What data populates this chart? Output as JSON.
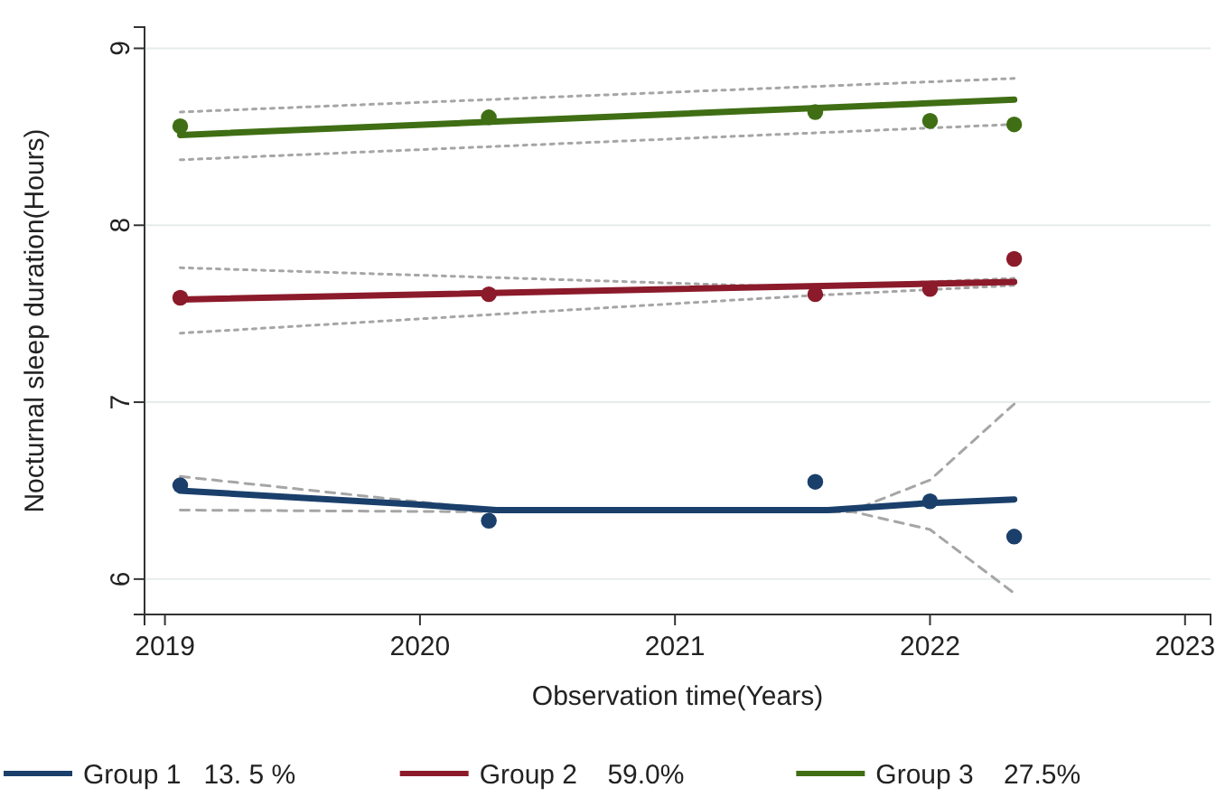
{
  "chart_data": {
    "type": "line",
    "xlabel": "Observation time(Years)",
    "ylabel": "Nocturnal sleep duration(Hours)",
    "xlim": [
      2018.92,
      2023.1
    ],
    "xticks": [
      2019,
      2020,
      2021,
      2022,
      2023
    ],
    "ylim": [
      5.8,
      9.12
    ],
    "yticks": [
      6,
      7,
      8,
      9
    ],
    "grid": "y",
    "legend": "bottom",
    "series": [
      {
        "name": "Group 1   13. 5 %",
        "color": "#1a3f6b",
        "x": [
          2019.06,
          2020.0,
          2020.3,
          2021.6,
          2022.0,
          2022.33
        ],
        "values": [
          6.5,
          6.42,
          6.39,
          6.39,
          6.43,
          6.45
        ]
      },
      {
        "name": "Group 2    59.0%",
        "color": "#8b1a2a",
        "x": [
          2019.06,
          2022.33
        ],
        "values": [
          7.58,
          7.68
        ]
      },
      {
        "name": "Group 3    27.5%",
        "color": "#3f6e14",
        "x": [
          2019.06,
          2022.33
        ],
        "values": [
          8.51,
          8.71
        ]
      },
      {
        "type": "scatter",
        "marker": "circle",
        "color": "#1a3f6b",
        "x": [
          2019.06,
          2020.27,
          2021.55,
          2022.0,
          2022.33
        ],
        "values": [
          6.53,
          6.33,
          6.55,
          6.44,
          6.24
        ]
      },
      {
        "type": "scatter",
        "marker": "circle",
        "color": "#8b1a2a",
        "x": [
          2019.06,
          2020.27,
          2021.55,
          2022.0,
          2022.33
        ],
        "values": [
          7.59,
          7.61,
          7.61,
          7.64,
          7.81
        ]
      },
      {
        "type": "scatter",
        "marker": "circle",
        "color": "#3f6e14",
        "x": [
          2019.06,
          2020.27,
          2021.55,
          2022.0,
          2022.33
        ],
        "values": [
          8.56,
          8.61,
          8.64,
          8.59,
          8.57
        ]
      },
      {
        "line_style": "dashed",
        "color": "#a6a6a6",
        "x": [
          2019.06,
          2020.3,
          2021.7,
          2022.0,
          2022.33
        ],
        "values": [
          6.58,
          6.39,
          6.39,
          6.56,
          6.99
        ]
      },
      {
        "line_style": "dashed",
        "color": "#a6a6a6",
        "x": [
          2019.06,
          2020.3,
          2021.7,
          2022.0,
          2022.33
        ],
        "values": [
          6.39,
          6.38,
          6.38,
          6.28,
          5.92
        ]
      },
      {
        "line_style": "dotted",
        "color": "#a6a6a6",
        "x": [
          2019.06,
          2021.5,
          2022.33
        ],
        "values": [
          7.76,
          7.65,
          7.7
        ]
      },
      {
        "line_style": "dotted",
        "color": "#a6a6a6",
        "x": [
          2019.06,
          2021.5,
          2022.33
        ],
        "values": [
          7.39,
          7.6,
          7.66
        ]
      },
      {
        "line_style": "dotted",
        "color": "#a6a6a6",
        "x": [
          2019.06,
          2022.33
        ],
        "values": [
          8.64,
          8.83
        ]
      },
      {
        "line_style": "dotted",
        "color": "#a6a6a6",
        "x": [
          2019.06,
          2022.33
        ],
        "values": [
          8.37,
          8.57
        ]
      }
    ]
  }
}
